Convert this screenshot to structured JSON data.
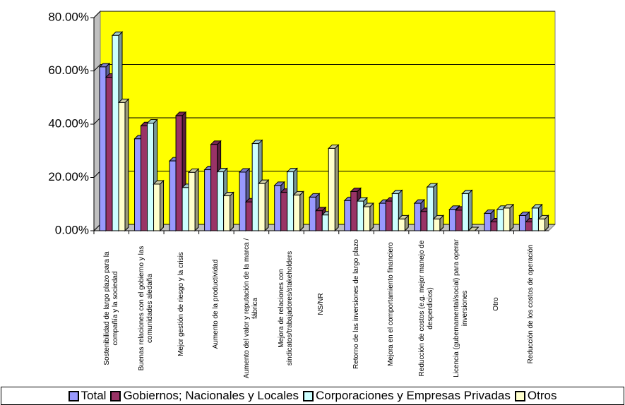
{
  "chart_data": {
    "type": "bar",
    "categories": [
      "Sostenibilidad de largo plazo para la compañía y la sociedad",
      "Buenas relaciones con el gobierno y las comunidades aledaña",
      "Mejor gestión de riesgo y la crisis",
      "Aumento de la productividad",
      "Aumento del valor y reputación de la marca / fábrica",
      "Mejora de relaciones con sindicatos/trabajadores/stakeholders",
      "NS/NR",
      "Retorno de las inversiones de largo plazo",
      "Mejora en el comportamiento financiero",
      "Reducción de costos (e.g. mejor manejo de desperdicios)",
      "Licencia (gubernamental/social) para operar inversiones",
      "Otro",
      "Reducción de los costos de operación"
    ],
    "series": [
      {
        "name": "Total",
        "color": "#9999ff",
        "values": [
          61.5,
          34.5,
          26.2,
          22.9,
          22,
          17,
          12.6,
          11.3,
          10.3,
          10.3,
          8,
          6.5,
          5.7
        ]
      },
      {
        "name": "Gobiernos; Nacionales y Locales",
        "color": "#993366",
        "values": [
          57.6,
          39.4,
          43.2,
          32.4,
          10.8,
          14.4,
          7.5,
          14.7,
          11.1,
          7.2,
          7.7,
          3.3,
          3.3
        ]
      },
      {
        "name": "Corporaciones y Empresas Privadas",
        "color": "#ccffff",
        "values": [
          73.3,
          40.4,
          16.2,
          22.1,
          32.7,
          22.1,
          5.9,
          11.1,
          13.9,
          16.4,
          13.9,
          8,
          8.5
        ]
      },
      {
        "name": "Otros",
        "color": "#ffffcc",
        "values": [
          48.1,
          17.5,
          21.9,
          13.1,
          17.7,
          13.4,
          30.9,
          9,
          4.4,
          4.4,
          0,
          8.5,
          4.4
        ]
      }
    ],
    "ylim": [
      0,
      80
    ],
    "yticks": [
      {
        "value": 0,
        "label": "0.00%"
      },
      {
        "value": 20,
        "label": "20.00%"
      },
      {
        "value": 40,
        "label": "40.00%"
      },
      {
        "value": 60,
        "label": "60.00%"
      },
      {
        "value": 80,
        "label": "80.00%"
      }
    ],
    "grid": true,
    "legend": "bottom"
  }
}
